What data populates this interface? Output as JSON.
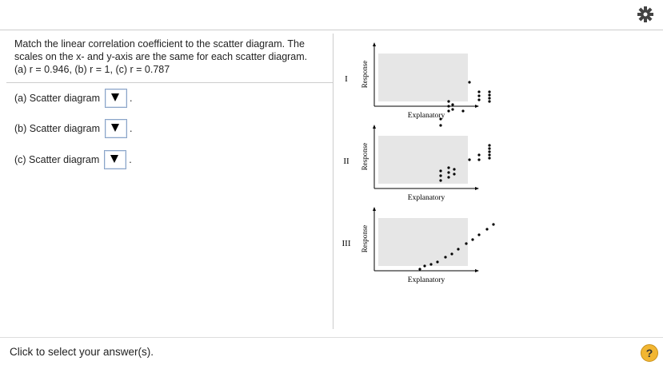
{
  "question": {
    "lines": [
      "Match the linear correlation coefficient to the scatter diagram. The",
      "scales on the x- and y-axis are the same for each scatter diagram.",
      "(a) r = 0.946, (b) r = 1, (c) r = 0.787"
    ]
  },
  "answers": [
    {
      "label": "(a) Scatter diagram",
      "suffix": "."
    },
    {
      "label": "(b) Scatter diagram",
      "suffix": "."
    },
    {
      "label": "(c) Scatter diagram",
      "suffix": "."
    }
  ],
  "diagrams": [
    {
      "label": "I",
      "y_axis": "Response",
      "x_axis": "Explanatory"
    },
    {
      "label": "II",
      "y_axis": "Response",
      "x_axis": "Explanatory"
    },
    {
      "label": "III",
      "y_axis": "Response",
      "x_axis": "Explanatory"
    }
  ],
  "footer": {
    "prompt": "Click to select your answer(s).",
    "help": "?"
  }
}
